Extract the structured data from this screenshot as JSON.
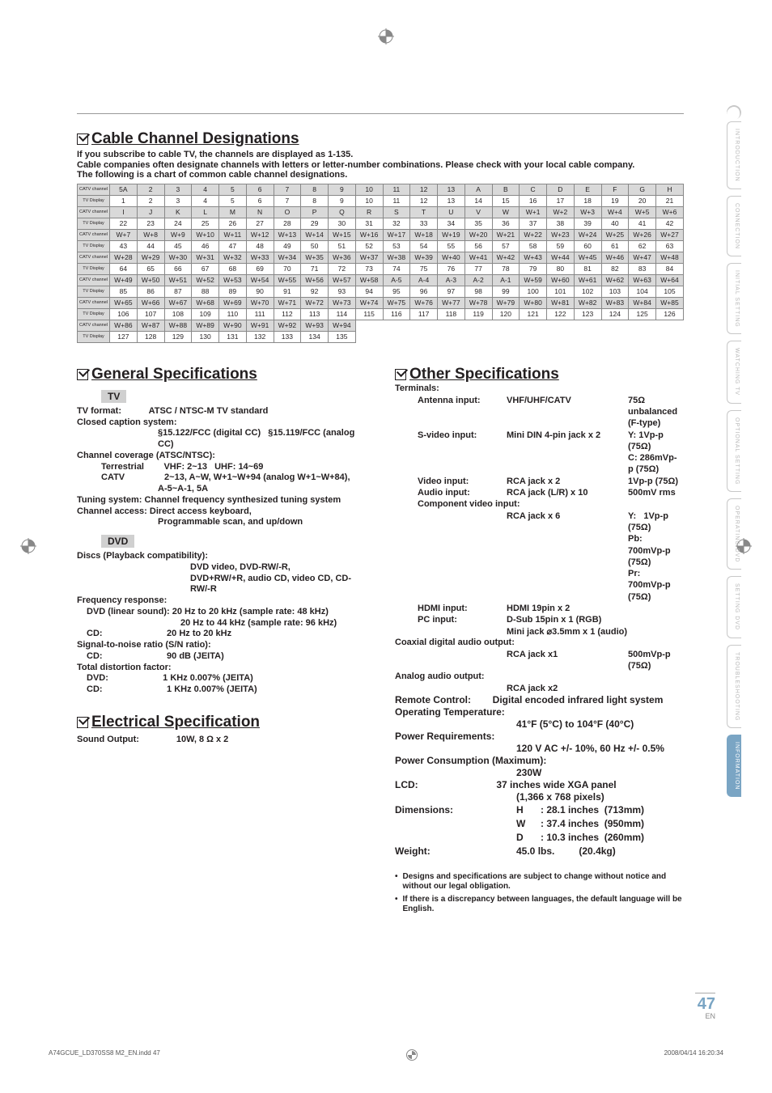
{
  "register_glyph": "⊕",
  "cable": {
    "title": "Cable Channel Designations",
    "intro1": "If you subscribe to cable TV, the channels are displayed as 1-135.",
    "intro2": "Cable companies often designate channels with letters or letter-number combinations. Please check with your local cable company.",
    "intro3": "The following is a chart of common cable channel designations.",
    "row_label_catv": "CATV channel",
    "row_label_tv": "TV Display",
    "rows": [
      [
        "5A",
        "2",
        "3",
        "4",
        "5",
        "6",
        "7",
        "8",
        "9",
        "10",
        "11",
        "12",
        "13",
        "A",
        "B",
        "C",
        "D",
        "E",
        "F",
        "G",
        "H"
      ],
      [
        "1",
        "2",
        "3",
        "4",
        "5",
        "6",
        "7",
        "8",
        "9",
        "10",
        "11",
        "12",
        "13",
        "14",
        "15",
        "16",
        "17",
        "18",
        "19",
        "20",
        "21"
      ],
      [
        "I",
        "J",
        "K",
        "L",
        "M",
        "N",
        "O",
        "P",
        "Q",
        "R",
        "S",
        "T",
        "U",
        "V",
        "W",
        "W+1",
        "W+2",
        "W+3",
        "W+4",
        "W+5",
        "W+6"
      ],
      [
        "22",
        "23",
        "24",
        "25",
        "26",
        "27",
        "28",
        "29",
        "30",
        "31",
        "32",
        "33",
        "34",
        "35",
        "36",
        "37",
        "38",
        "39",
        "40",
        "41",
        "42"
      ],
      [
        "W+7",
        "W+8",
        "W+9",
        "W+10",
        "W+11",
        "W+12",
        "W+13",
        "W+14",
        "W+15",
        "W+16",
        "W+17",
        "W+18",
        "W+19",
        "W+20",
        "W+21",
        "W+22",
        "W+23",
        "W+24",
        "W+25",
        "W+26",
        "W+27"
      ],
      [
        "43",
        "44",
        "45",
        "46",
        "47",
        "48",
        "49",
        "50",
        "51",
        "52",
        "53",
        "54",
        "55",
        "56",
        "57",
        "58",
        "59",
        "60",
        "61",
        "62",
        "63"
      ],
      [
        "W+28",
        "W+29",
        "W+30",
        "W+31",
        "W+32",
        "W+33",
        "W+34",
        "W+35",
        "W+36",
        "W+37",
        "W+38",
        "W+39",
        "W+40",
        "W+41",
        "W+42",
        "W+43",
        "W+44",
        "W+45",
        "W+46",
        "W+47",
        "W+48"
      ],
      [
        "64",
        "65",
        "66",
        "67",
        "68",
        "69",
        "70",
        "71",
        "72",
        "73",
        "74",
        "75",
        "76",
        "77",
        "78",
        "79",
        "80",
        "81",
        "82",
        "83",
        "84"
      ],
      [
        "W+49",
        "W+50",
        "W+51",
        "W+52",
        "W+53",
        "W+54",
        "W+55",
        "W+56",
        "W+57",
        "W+58",
        "A-5",
        "A-4",
        "A-3",
        "A-2",
        "A-1",
        "W+59",
        "W+60",
        "W+61",
        "W+62",
        "W+63",
        "W+64"
      ],
      [
        "85",
        "86",
        "87",
        "88",
        "89",
        "90",
        "91",
        "92",
        "93",
        "94",
        "95",
        "96",
        "97",
        "98",
        "99",
        "100",
        "101",
        "102",
        "103",
        "104",
        "105"
      ],
      [
        "W+65",
        "W+66",
        "W+67",
        "W+68",
        "W+69",
        "W+70",
        "W+71",
        "W+72",
        "W+73",
        "W+74",
        "W+75",
        "W+76",
        "W+77",
        "W+78",
        "W+79",
        "W+80",
        "W+81",
        "W+82",
        "W+83",
        "W+84",
        "W+85"
      ],
      [
        "106",
        "107",
        "108",
        "109",
        "110",
        "111",
        "112",
        "113",
        "114",
        "115",
        "116",
        "117",
        "118",
        "119",
        "120",
        "121",
        "122",
        "123",
        "124",
        "125",
        "126"
      ],
      [
        "W+86",
        "W+87",
        "W+88",
        "W+89",
        "W+90",
        "W+91",
        "W+92",
        "W+93",
        "W+94",
        "",
        "",
        "",
        "",
        "",
        "",
        "",
        "",
        "",
        "",
        "",
        ""
      ],
      [
        "127",
        "128",
        "129",
        "130",
        "131",
        "132",
        "133",
        "134",
        "135",
        "",
        "",
        "",
        "",
        "",
        "",
        "",
        "",
        "",
        "",
        "",
        ""
      ]
    ]
  },
  "general": {
    "title": "General Specifications",
    "tv_bar": "TV",
    "tv_format_k": "TV format:",
    "tv_format_v": "ATSC / NTSC-M TV standard",
    "ccs": "Closed caption system:",
    "ccs_v": "§15.122/FCC (digital CC)   §15.119/FCC (analog CC)",
    "cov": "Channel coverage (ATSC/NTSC):",
    "terr_k": "Terrestrial",
    "terr_v": "VHF: 2~13   UHF:  14~69",
    "catv_k": "CATV",
    "catv_v1": "2~13, A~W, W+1~W+94 (analog W+1~W+84),",
    "catv_v2": "A-5~A-1, 5A",
    "tuning_k": "Tuning system:",
    "tuning_v": " Channel frequency synthesized tuning system",
    "chacc_k": "Channel access:",
    "chacc_v1": " Direct access keyboard,",
    "chacc_v2": "Programmable scan, and up/down",
    "dvd_bar": "DVD",
    "discs": "Discs (Playback compatibility):",
    "discs_v1": "DVD video, DVD-RW/-R,",
    "discs_v2": "DVD+RW/+R, audio CD, video CD, CD-RW/-R",
    "freq": "Frequency response:",
    "freq_dvd_k": "DVD (linear sound):",
    "freq_dvd_v": " 20 Hz to 20 kHz (sample rate: 48 kHz)",
    "freq_dvd_v2": "20 Hz to 44 kHz (sample rate: 96 kHz)",
    "freq_cd_k": "CD:",
    "freq_cd_v": "20 Hz to 20 kHz",
    "sn": "Signal-to-noise ratio (S/N ratio):",
    "sn_cd_k": "CD:",
    "sn_cd_v": "90 dB (JEITA)",
    "td": "Total distortion factor:",
    "td_dvd_k": "DVD:",
    "td_dvd_v": "1 KHz  0.007% (JEITA)",
    "td_cd_k": "CD:",
    "td_cd_v": "1 KHz  0.007% (JEITA)"
  },
  "elec": {
    "title": "Electrical Specification",
    "k": "Sound Output:",
    "v": "10W, 8 Ω x 2"
  },
  "other": {
    "title": "Other Specifications",
    "terminals": "Terminals:",
    "ant_k": "Antenna input:",
    "ant_m": "VHF/UHF/CATV",
    "ant_v": "75Ω unbalanced (F-type)",
    "sv_k": "S-video input:",
    "sv_m": "Mini DIN 4-pin jack x 2",
    "sv_v": "Y: 1Vp-p (75Ω)",
    "sv_v2": "C: 286mVp-p (75Ω)",
    "vid_k": "Video input:",
    "vid_m": "RCA jack x 2",
    "vid_v": "1Vp-p (75Ω)",
    "aud_k": "Audio input:",
    "aud_m": "RCA jack (L/R) x 10",
    "aud_v": "500mV rms",
    "comp": "Component video input:",
    "comp_m": "RCA jack x 6",
    "comp_v1": "Y:   1Vp-p (75Ω)",
    "comp_v2": "Pb: 700mVp-p (75Ω)",
    "comp_v3": "Pr:  700mVp-p (75Ω)",
    "hdmi_k": "HDMI input:",
    "hdmi_m": "HDMI 19pin x 2",
    "pc_k": "PC input:",
    "pc_m": "D-Sub 15pin x 1 (RGB)",
    "pc_m2": "Mini jack ⌀3.5mm x 1 (audio)",
    "coax": "Coaxial digital audio output:",
    "coax_m": "RCA jack x1",
    "coax_v": "500mVp-p (75Ω)",
    "analog": "Analog audio output:",
    "analog_m": "RCA jack x2",
    "remote_k": "Remote Control:",
    "remote_v": "Digital encoded infrared light system",
    "optemp_k": "Operating Temperature:",
    "optemp_v": "41°F (5°C) to 104°F (40°C)",
    "pwr_k": "Power Requirements:",
    "pwr_v": "120 V AC +/- 10%, 60 Hz +/- 0.5%",
    "pwrc_k": "Power Consumption (Maximum):",
    "pwrc_v": "230W",
    "lcd_k": "LCD:",
    "lcd_v1": "37 inches wide XGA panel",
    "lcd_v2": "(1,366 x 768 pixels)",
    "dim_k": "Dimensions:",
    "dim_h": "H",
    "dim_hv": ": 28.1 inches  (713mm)",
    "dim_w": "W",
    "dim_wv": ": 37.4 inches  (950mm)",
    "dim_d": "D",
    "dim_dv": ": 10.3 inches  (260mm)",
    "weight_k": "Weight:",
    "weight_v": "45.0 lbs.",
    "weight_v2": "(20.4kg)",
    "bullet1": "Designs and specifications are subject to change without notice and without our legal obligation.",
    "bullet2": "If there is a discrepancy between languages, the default language will be English."
  },
  "tabs": [
    "INTRODUCTION",
    "CONNECTION",
    "INITIAL SETTING",
    "WATCHING TV",
    "OPTIONAL SETTING",
    "OPERATING DVD",
    "SETTING DVD",
    "TROUBLESHOOTING",
    "INFORMATION"
  ],
  "page_number": "47",
  "page_en": "EN",
  "footer_left": "A74GCUE_LD370SS8 M2_EN.indd   47",
  "footer_right": "2008/04/14   16:20:34"
}
